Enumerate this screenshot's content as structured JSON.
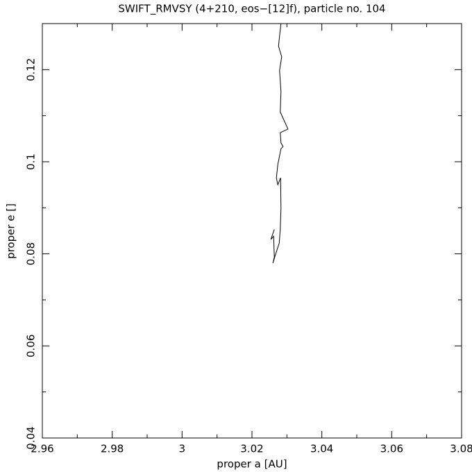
{
  "chart_data": {
    "type": "line",
    "title": "SWIFT_RMVSY (4+210, eos−[12]f), particle no. 104",
    "x_label": "proper a [AU]",
    "y_label": "proper e []",
    "x": [
      3.0283,
      3.0278,
      3.0276,
      3.0285,
      3.0279,
      3.0283,
      3.0281,
      3.0303,
      3.0281,
      3.0283,
      3.0289,
      3.0283,
      3.0274,
      3.027,
      3.0274,
      3.0282,
      3.0283,
      3.0281,
      3.0278,
      3.0268,
      3.026,
      3.0264,
      3.0262,
      3.0254,
      3.0264
    ],
    "values": [
      0.13,
      0.1266,
      0.1251,
      0.1228,
      0.1198,
      0.1153,
      0.1108,
      0.1071,
      0.1063,
      0.1041,
      0.1033,
      0.1028,
      0.0994,
      0.0965,
      0.095,
      0.0965,
      0.0898,
      0.0853,
      0.0823,
      0.08,
      0.078,
      0.0793,
      0.0838,
      0.0831,
      0.0853
    ],
    "color": "#000000",
    "xlim": [
      2.96,
      3.08
    ],
    "ylim": [
      0.04,
      0.13
    ],
    "xticks": [
      2.96,
      2.98,
      3,
      3.02,
      3.04,
      3.06,
      3.08
    ],
    "yticks": [
      0.04,
      0.06,
      0.08,
      0.1,
      0.12
    ],
    "xminorticks": [
      2.97,
      2.99,
      3.01,
      3.03,
      3.05,
      3.07
    ],
    "yminorticks": [
      0.05,
      0.07,
      0.09,
      0.11
    ],
    "grid": false
  }
}
